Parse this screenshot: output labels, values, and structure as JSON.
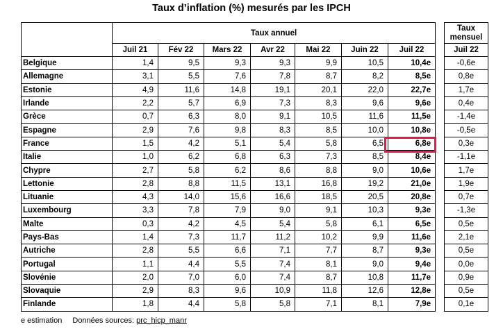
{
  "title": "Taux d’inflation (%) mesurés par les IPCH",
  "annual_header": "Taux annuel",
  "monthly_header_line1": "Taux",
  "monthly_header_line2": "mensuel",
  "columns": [
    "Juil 21",
    "Fév 22",
    "Mars 22",
    "Avr 22",
    "Mai 22",
    "Juin 22",
    "Juil 22"
  ],
  "monthly_column": "Juil 22",
  "rows": [
    {
      "country": "Belgique",
      "values": [
        "1,4",
        "9,5",
        "9,3",
        "9,3",
        "9,9",
        "10,5",
        "10,4e"
      ],
      "monthly": "-0,6e"
    },
    {
      "country": "Allemagne",
      "values": [
        "3,1",
        "5,5",
        "7,6",
        "7,8",
        "8,7",
        "8,2",
        "8,5e"
      ],
      "monthly": "0,8e"
    },
    {
      "country": "Estonie",
      "values": [
        "4,9",
        "11,6",
        "14,8",
        "19,1",
        "20,1",
        "22,0",
        "22,7e"
      ],
      "monthly": "1,7e"
    },
    {
      "country": "Irlande",
      "values": [
        "2,2",
        "5,7",
        "6,9",
        "7,3",
        "8,3",
        "9,6",
        "9,6e"
      ],
      "monthly": "0,4e"
    },
    {
      "country": "Grèce",
      "values": [
        "0,7",
        "6,3",
        "8,0",
        "9,1",
        "10,5",
        "11,6",
        "11,5e"
      ],
      "monthly": "-1,4e"
    },
    {
      "country": "Espagne",
      "values": [
        "2,9",
        "7,6",
        "9,8",
        "8,3",
        "8,5",
        "10,0",
        "10,8e"
      ],
      "monthly": "-0,5e"
    },
    {
      "country": "France",
      "values": [
        "1,5",
        "4,2",
        "5,1",
        "5,4",
        "5,8",
        "6,5",
        "6,8e"
      ],
      "monthly": "0,3e"
    },
    {
      "country": "Italie",
      "values": [
        "1,0",
        "6,2",
        "6,8",
        "6,3",
        "7,3",
        "8,5",
        "8,4e"
      ],
      "monthly": "-1,1e"
    },
    {
      "country": "Chypre",
      "values": [
        "2,7",
        "5,8",
        "6,2",
        "8,6",
        "8,8",
        "9,0",
        "10,6e"
      ],
      "monthly": "1,7e"
    },
    {
      "country": "Lettonie",
      "values": [
        "2,8",
        "8,8",
        "11,5",
        "13,1",
        "16,8",
        "19,2",
        "21,0e"
      ],
      "monthly": "1,9e"
    },
    {
      "country": "Lituanie",
      "values": [
        "4,3",
        "14,0",
        "15,6",
        "16,6",
        "18,5",
        "20,5",
        "20,8e"
      ],
      "monthly": "0,7e"
    },
    {
      "country": "Luxembourg",
      "values": [
        "3,3",
        "7,8",
        "7,9",
        "9,0",
        "9,1",
        "10,3",
        "9,3e"
      ],
      "monthly": "-1,3e"
    },
    {
      "country": "Malte",
      "values": [
        "0,3",
        "4,2",
        "4,5",
        "5,4",
        "5,8",
        "6,1",
        "6,5e"
      ],
      "monthly": "0,5e"
    },
    {
      "country": "Pays-Bas",
      "values": [
        "1,4",
        "7,3",
        "11,7",
        "11,2",
        "10,2",
        "9,9",
        "11,6e"
      ],
      "monthly": "2,1e"
    },
    {
      "country": "Autriche",
      "values": [
        "2,8",
        "5,5",
        "6,6",
        "7,1",
        "7,7",
        "8,7",
        "9,3e"
      ],
      "monthly": "0,5e"
    },
    {
      "country": "Portugal",
      "values": [
        "1,1",
        "4,4",
        "5,5",
        "7,4",
        "8,1",
        "9,0",
        "9,4e"
      ],
      "monthly": "0,0e"
    },
    {
      "country": "Slovénie",
      "values": [
        "2,0",
        "7,0",
        "6,0",
        "7,4",
        "8,7",
        "10,8",
        "11,7e"
      ],
      "monthly": "0,9e"
    },
    {
      "country": "Slovaquie",
      "values": [
        "2,9",
        "8,3",
        "9,6",
        "10,9",
        "11,8",
        "12,6",
        "12,8e"
      ],
      "monthly": "0,5e"
    },
    {
      "country": "Finlande",
      "values": [
        "1,8",
        "4,4",
        "5,8",
        "5,8",
        "7,1",
        "8,1",
        "7,9e"
      ],
      "monthly": "0,1e"
    }
  ],
  "highlight_color": "#e5174b",
  "footer_note": "e estimation",
  "footer_source_label": "Données sources:",
  "footer_source_link": "prc_hicp_manr"
}
